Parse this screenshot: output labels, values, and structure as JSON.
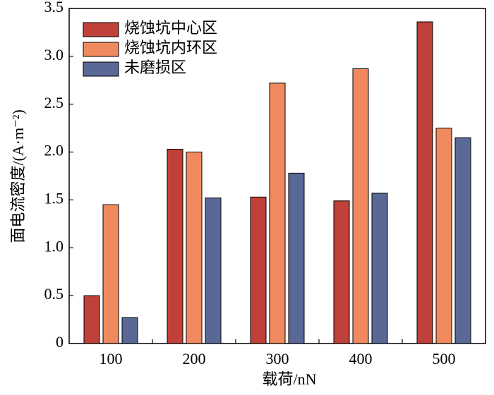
{
  "chart_data": {
    "type": "bar",
    "xlabel": "载荷/nN",
    "ylabel": "面电流密度/(A·m⁻²)",
    "categories": [
      "100",
      "200",
      "300",
      "400",
      "500"
    ],
    "series": [
      {
        "name": "烧蚀坑中心区",
        "color": "#c0413a",
        "values": [
          0.5,
          2.03,
          1.53,
          1.49,
          3.36
        ]
      },
      {
        "name": "烧蚀坑内环区",
        "color": "#f08a5e",
        "values": [
          1.45,
          2.0,
          2.72,
          2.87,
          2.25
        ]
      },
      {
        "name": "未磨损区",
        "color": "#5a6896",
        "values": [
          0.27,
          1.52,
          1.78,
          1.57,
          2.15
        ]
      }
    ],
    "ylim": [
      0,
      3.5
    ],
    "yticks": [
      0,
      0.5,
      {
        "value": 1,
        "label": "1.0"
      },
      1.5,
      {
        "value": 2,
        "label": "2.0"
      },
      2.5,
      {
        "value": 3,
        "label": "3.0"
      },
      3.5
    ],
    "legend": "upper-left"
  }
}
